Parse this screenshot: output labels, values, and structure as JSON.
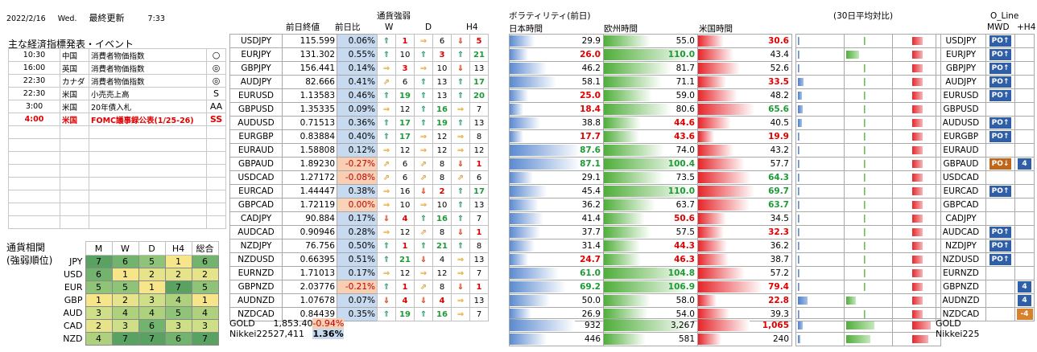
{
  "header": {
    "date": "2022/2/16",
    "weekday": "Wed.",
    "updated_label": "最終更新",
    "time": "7:33"
  },
  "events": {
    "title": "主な経済指標発表・イベント",
    "rows": [
      {
        "time": "10:30",
        "country": "中国",
        "event": "消費者物価指数",
        "mark": "○",
        "red": false
      },
      {
        "time": "16:00",
        "country": "英国",
        "event": "消費者物価指数",
        "mark": "◎",
        "red": false
      },
      {
        "time": "22:30",
        "country": "カナダ",
        "event": "消費者物価指数",
        "mark": "◎",
        "red": false
      },
      {
        "time": "22:30",
        "country": "米国",
        "event": "小売売上高",
        "mark": "S",
        "red": false
      },
      {
        "time": "3:00",
        "country": "米国",
        "event": "20年債入札",
        "mark": "AA",
        "red": false
      },
      {
        "time": "4:00",
        "country": "米国",
        "event": "FOMC議事録公表(1/25-26)",
        "mark": "SS",
        "red": true
      },
      {
        "time": "",
        "country": "",
        "event": "",
        "mark": "",
        "red": false
      },
      {
        "time": "",
        "country": "",
        "event": "",
        "mark": "",
        "red": false
      },
      {
        "time": "",
        "country": "",
        "event": "",
        "mark": "",
        "red": false
      },
      {
        "time": "",
        "country": "",
        "event": "",
        "mark": "",
        "red": false
      },
      {
        "time": "",
        "country": "",
        "event": "",
        "mark": "",
        "red": false
      },
      {
        "time": "",
        "country": "",
        "event": "",
        "mark": "",
        "red": false
      },
      {
        "time": "",
        "country": "",
        "event": "",
        "mark": "",
        "red": false
      },
      {
        "time": "",
        "country": "",
        "event": "",
        "mark": "",
        "red": false
      }
    ]
  },
  "correlation": {
    "label1": "通貨相関",
    "label2": "(強弱順位)",
    "headers": [
      "M",
      "W",
      "D",
      "H4",
      "総合"
    ],
    "rows": [
      {
        "cur": "JPY",
        "v": [
          7,
          6,
          5,
          1,
          6
        ]
      },
      {
        "cur": "USD",
        "v": [
          6,
          1,
          2,
          2,
          2
        ]
      },
      {
        "cur": "EUR",
        "v": [
          5,
          5,
          1,
          7,
          5
        ]
      },
      {
        "cur": "GBP",
        "v": [
          1,
          2,
          3,
          4,
          1
        ]
      },
      {
        "cur": "AUD",
        "v": [
          3,
          4,
          4,
          5,
          4
        ]
      },
      {
        "cur": "CAD",
        "v": [
          2,
          3,
          6,
          3,
          3
        ]
      },
      {
        "cur": "NZD",
        "v": [
          4,
          7,
          7,
          6,
          7
        ]
      }
    ]
  },
  "price_headers": {
    "close": "前日終値",
    "change": "前日比"
  },
  "strength_headers": {
    "title": "通貨強弱",
    "w": "W",
    "d": "D",
    "h4": "H4"
  },
  "vol_headers": {
    "title": "ボラティリティ(前日)",
    "jp": "日本時間",
    "eu": "欧州時間",
    "us": "米国時間",
    "avg": "(30日平均対比)"
  },
  "oline_headers": {
    "title": "O_Line",
    "mwd": "MWD",
    "h4": "+H4"
  },
  "pairs": [
    {
      "pair": "USDJPY",
      "price": "115.599",
      "chg": "0.06%",
      "s": "p",
      "w": [
        "u",
        1
      ],
      "d": [
        "r",
        6
      ],
      "h4": [
        "d",
        5
      ],
      "wc": "r",
      "hc": "r",
      "jp": "29.9",
      "eu": "55.0",
      "us": "30.6",
      "jw": 0.27,
      "ew": 0.5,
      "uw": 0.28,
      "uc": 1,
      "a": [
        0,
        0.04,
        0.22
      ],
      "o": "up",
      "h": ""
    },
    {
      "pair": "EURJPY",
      "price": "131.302",
      "chg": "0.55%",
      "s": "p",
      "w": [
        "u",
        10
      ],
      "d": [
        "u",
        3
      ],
      "h4": [
        "u",
        21
      ],
      "wc": "",
      "dc": "r",
      "hc": "g",
      "jp": "26.0",
      "eu": "110.0",
      "us": "43.4",
      "jr": 1,
      "ew": 0.95,
      "ec": 1,
      "jw": 0.2,
      "uw": 0.38,
      "a": [
        0,
        0.27,
        0.22
      ],
      "o": "up",
      "h": ""
    },
    {
      "pair": "GBPJPY",
      "price": "156.441",
      "chg": "0.14%",
      "s": "p",
      "w": [
        "r",
        3
      ],
      "d": [
        "r",
        10
      ],
      "h4": [
        "d",
        13
      ],
      "wc": "r",
      "jw": 0.4,
      "ew": 0.72,
      "uw": 0.45,
      "jp": "46.2",
      "eu": "81.7",
      "us": "52.6",
      "a": [
        0,
        0.04,
        0.22
      ],
      "o": "up",
      "h": ""
    },
    {
      "pair": "AUDJPY",
      "price": "82.666",
      "chg": "0.41%",
      "s": "p",
      "w": [
        "ur",
        6
      ],
      "d": [
        "u",
        13
      ],
      "h4": [
        "u",
        17
      ],
      "hc": "g",
      "jp": "58.1",
      "eu": "71.1",
      "us": "33.5",
      "jc": 1,
      "uc": 1,
      "jw": 0.5,
      "ew": 0.62,
      "uw": 0.3,
      "a": [
        0.12,
        0.04,
        0.22
      ],
      "o": "up",
      "h": ""
    },
    {
      "pair": "EURUSD",
      "price": "1.13583",
      "chg": "0.46%",
      "s": "p",
      "w": [
        "u",
        19
      ],
      "d": [
        "u",
        13
      ],
      "h4": [
        "u",
        20
      ],
      "wc": "g",
      "hc": "g",
      "jp": "25.0",
      "eu": "59.0",
      "us": "48.2",
      "jr": 1,
      "jw": 0.2,
      "ew": 0.52,
      "uw": 0.42,
      "a": [
        0.08,
        0.04,
        0.22
      ],
      "o": "up",
      "h": ""
    },
    {
      "pair": "GBPUSD",
      "price": "1.35335",
      "chg": "0.09%",
      "s": "p",
      "w": [
        "r",
        12
      ],
      "d": [
        "u",
        16
      ],
      "h4": [
        "r",
        7
      ],
      "dc": "g",
      "jp": "18.4",
      "eu": "80.6",
      "us": "65.6",
      "jr": 1,
      "uc2": 1,
      "jw": 0.15,
      "ew": 0.72,
      "uw": 0.6,
      "a": [
        0.1,
        0.04,
        0.22
      ],
      "o": "",
      "h": ""
    },
    {
      "pair": "AUDUSD",
      "price": "0.71513",
      "chg": "0.36%",
      "s": "p",
      "w": [
        "u",
        17
      ],
      "d": [
        "u",
        19
      ],
      "h4": [
        "u",
        13
      ],
      "wc": "g",
      "dc": "g",
      "jp": "38.8",
      "eu": "44.6",
      "us": "40.5",
      "er": 1,
      "jw": 0.33,
      "ew": 0.4,
      "uw": 0.35,
      "a": [
        0.08,
        0.04,
        0.22
      ],
      "o": "up",
      "h": ""
    },
    {
      "pair": "EURGBP",
      "price": "0.83884",
      "chg": "0.40%",
      "s": "p",
      "w": [
        "u",
        17
      ],
      "d": [
        "r",
        12
      ],
      "h4": [
        "r",
        8
      ],
      "wc": "g",
      "jp": "17.7",
      "eu": "43.6",
      "us": "19.9",
      "jr": 1,
      "er": 1,
      "uc": 1,
      "jw": 0.15,
      "ew": 0.38,
      "uw": 0.17,
      "a": [
        0,
        0.04,
        0.22
      ],
      "o": "up",
      "h": ""
    },
    {
      "pair": "EURAUD",
      "price": "1.58808",
      "chg": "0.12%",
      "s": "p",
      "w": [
        "r",
        12
      ],
      "d": [
        "r",
        12
      ],
      "h4": [
        "r",
        12
      ],
      "jp": "87.6",
      "eu": "74.0",
      "us": "43.2",
      "jg": 1,
      "jw": 0.76,
      "ew": 0.65,
      "uw": 0.38,
      "a": [
        0,
        0.04,
        0.22
      ],
      "o": "",
      "h": ""
    },
    {
      "pair": "GBPAUD",
      "price": "1.89230",
      "chg": "-0.27%",
      "s": "n",
      "w": [
        "ur",
        6
      ],
      "d": [
        "ur",
        8
      ],
      "h4": [
        "d",
        1
      ],
      "hc": "r",
      "jp": "87.1",
      "eu": "100.4",
      "us": "57.7",
      "jg": 1,
      "eg": 1,
      "jw": 0.76,
      "ew": 0.88,
      "uw": 0.5,
      "a": [
        0,
        0.04,
        0.22
      ],
      "o": "dn",
      "h": "4"
    },
    {
      "pair": "USDCAD",
      "price": "1.27172",
      "chg": "-0.08%",
      "s": "n",
      "w": [
        "ur",
        6
      ],
      "d": [
        "ur",
        8
      ],
      "h4": [
        "ur",
        6
      ],
      "jp": "29.1",
      "eu": "73.5",
      "us": "64.3",
      "uc2": 1,
      "jw": 0.25,
      "ew": 0.64,
      "uw": 0.56,
      "a": [
        0,
        0.04,
        0.22
      ],
      "o": "",
      "h": ""
    },
    {
      "pair": "EURCAD",
      "price": "1.44447",
      "chg": "0.38%",
      "s": "p",
      "w": [
        "r",
        16
      ],
      "d": [
        "d",
        2
      ],
      "h4": [
        "u",
        17
      ],
      "dc": "r",
      "hc": "g",
      "jp": "45.4",
      "eu": "110.0",
      "us": "69.7",
      "eg": 1,
      "uc2": 1,
      "jw": 0.4,
      "ew": 0.95,
      "uw": 0.6,
      "a": [
        0,
        0.04,
        0.22
      ],
      "o": "up",
      "h": ""
    },
    {
      "pair": "GBPCAD",
      "price": "1.72119",
      "chg": "0.00%",
      "s": "z",
      "w": [
        "r",
        10
      ],
      "d": [
        "r",
        10
      ],
      "h4": [
        "u",
        13
      ],
      "jp": "36.2",
      "eu": "63.7",
      "us": "63.7",
      "uc2": 1,
      "jw": 0.31,
      "ew": 0.55,
      "uw": 0.55,
      "a": [
        0,
        0.04,
        0.22
      ],
      "o": "",
      "h": ""
    },
    {
      "pair": "CADJPY",
      "price": "90.884",
      "chg": "0.17%",
      "s": "p",
      "w": [
        "d",
        4
      ],
      "d": [
        "u",
        16
      ],
      "h4": [
        "u",
        7
      ],
      "wc": "r",
      "dc": "g",
      "jp": "41.4",
      "eu": "50.6",
      "us": "34.5",
      "er": 1,
      "jw": 0.36,
      "ew": 0.44,
      "uw": 0.3,
      "a": [
        0,
        0.04,
        0.22
      ],
      "o": "",
      "h": ""
    },
    {
      "pair": "AUDCAD",
      "price": "0.90946",
      "chg": "0.28%",
      "s": "p",
      "w": [
        "r",
        12
      ],
      "d": [
        "ur",
        8
      ],
      "h4": [
        "d",
        1
      ],
      "hc": "r",
      "jp": "37.7",
      "eu": "57.5",
      "us": "32.3",
      "uc": 1,
      "jw": 0.33,
      "ew": 0.5,
      "uw": 0.28,
      "a": [
        0,
        0.04,
        0.22
      ],
      "o": "up",
      "h": ""
    },
    {
      "pair": "NZDJPY",
      "price": "76.756",
      "chg": "0.50%",
      "s": "p",
      "w": [
        "u",
        1
      ],
      "d": [
        "u",
        21
      ],
      "h4": [
        "u",
        8
      ],
      "wc": "r",
      "dc": "g",
      "jp": "31.4",
      "eu": "44.3",
      "us": "36.2",
      "er": 1,
      "jw": 0.27,
      "ew": 0.39,
      "uw": 0.31,
      "a": [
        0,
        0.04,
        0.22
      ],
      "o": "up",
      "h": ""
    },
    {
      "pair": "NZDUSD",
      "price": "0.66395",
      "chg": "0.51%",
      "s": "p",
      "w": [
        "u",
        21
      ],
      "d": [
        "d",
        4
      ],
      "h4": [
        "r",
        13
      ],
      "wc": "g",
      "jp": "24.7",
      "eu": "46.3",
      "us": "38.7",
      "jr": 1,
      "er": 1,
      "jw": 0.2,
      "ew": 0.4,
      "uw": 0.33,
      "a": [
        0,
        0.04,
        0.22
      ],
      "o": "up",
      "h": ""
    },
    {
      "pair": "EURNZD",
      "price": "1.71013",
      "chg": "0.17%",
      "s": "p",
      "w": [
        "r",
        12
      ],
      "d": [
        "r",
        12
      ],
      "h4": [
        "r",
        7
      ],
      "jp": "61.0",
      "eu": "104.8",
      "us": "57.2",
      "jg": 1,
      "eg": 1,
      "jw": 0.53,
      "ew": 0.91,
      "uw": 0.5,
      "a": [
        0,
        0.04,
        0.22
      ],
      "o": "",
      "h": ""
    },
    {
      "pair": "GBPNZD",
      "price": "2.03776",
      "chg": "-0.21%",
      "s": "n",
      "w": [
        "u",
        1
      ],
      "d": [
        "ur",
        8
      ],
      "h4": [
        "d",
        1
      ],
      "wc": "r",
      "hc": "r",
      "jp": "69.2",
      "eu": "106.9",
      "us": "79.4",
      "jg": 1,
      "eg": 1,
      "uc": 1,
      "jw": 0.6,
      "ew": 0.93,
      "uw": 0.69,
      "a": [
        0,
        0.04,
        0.22
      ],
      "o": "",
      "h": "4"
    },
    {
      "pair": "AUDNZD",
      "price": "1.07678",
      "chg": "0.07%",
      "s": "p",
      "w": [
        "d",
        4
      ],
      "d": [
        "d",
        4
      ],
      "h4": [
        "r",
        13
      ],
      "wc": "r",
      "dc": "r",
      "jp": "50.0",
      "eu": "58.0",
      "us": "22.8",
      "uc": 1,
      "jw": 0.43,
      "ew": 0.5,
      "uw": 0.2,
      "a": [
        0.2,
        0.2,
        0.22
      ],
      "o": "",
      "h": "4"
    },
    {
      "pair": "NZDCAD",
      "price": "0.84439",
      "chg": "0.35%",
      "s": "p",
      "w": [
        "u",
        19
      ],
      "d": [
        "u",
        16
      ],
      "h4": [
        "r",
        7
      ],
      "wc": "g",
      "dc": "g",
      "jp": "26.9",
      "eu": "54.0",
      "us": "39.3",
      "jw": 0.23,
      "ew": 0.47,
      "uw": 0.34,
      "a": [
        0,
        0.04,
        0.22
      ],
      "o": "",
      "h": "-4"
    }
  ],
  "extra": [
    {
      "pair": "GOLD",
      "price": "1,853.40",
      "chg": "-0.94%",
      "s": "n",
      "jp": "932",
      "eu": "3,267",
      "us": "1,065",
      "jw": 0.7,
      "ew": 0.95,
      "uw": 0.55,
      "uc": 1
    },
    {
      "pair": "Nikkei225",
      "price": "27,411",
      "chg": "1.36%",
      "s": "pb",
      "jp": "446",
      "eu": "581",
      "us": "240",
      "jw": 0.4,
      "ew": 0.45,
      "uw": 0.25
    }
  ]
}
